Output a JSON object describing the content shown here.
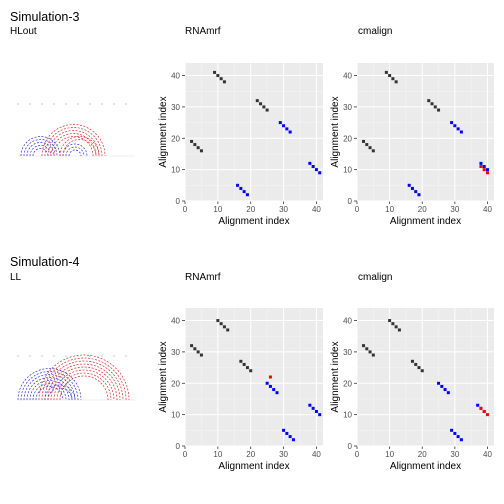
{
  "panels": [
    {
      "title": "Simulation-3",
      "structure": {
        "label": "HLout",
        "arcs_blue": [
          [
            2,
            15
          ],
          [
            3,
            14
          ],
          [
            4,
            13
          ],
          [
            5,
            12
          ],
          [
            6,
            11
          ],
          [
            16,
            24
          ],
          [
            17,
            23
          ],
          [
            18,
            22
          ]
        ],
        "arcs_red": [
          [
            9,
            30
          ],
          [
            10,
            29
          ],
          [
            11,
            28
          ],
          [
            12,
            27
          ],
          [
            13,
            26
          ],
          [
            15,
            28
          ],
          [
            16,
            27
          ]
        ]
      },
      "charts": [
        {
          "title": "RNAmrf",
          "xlabel": "Alignment index",
          "ylabel": "Alignment index",
          "xlim": [
            0,
            42
          ],
          "ylim": [
            0,
            44
          ],
          "xticks": [
            0,
            10,
            20,
            30,
            40
          ],
          "yticks": [
            0,
            10,
            20,
            30,
            40
          ],
          "series": [
            {
              "color": "#333333",
              "points": [
                [
                  2,
                  19
                ],
                [
                  3,
                  18
                ],
                [
                  4,
                  17
                ],
                [
                  5,
                  16
                ],
                [
                  9,
                  41
                ],
                [
                  10,
                  40
                ],
                [
                  11,
                  39
                ],
                [
                  12,
                  38
                ],
                [
                  22,
                  32
                ],
                [
                  23,
                  31
                ],
                [
                  24,
                  30
                ],
                [
                  25,
                  29
                ]
              ]
            },
            {
              "color": "#0000ff",
              "points": [
                [
                  16,
                  5
                ],
                [
                  17,
                  4
                ],
                [
                  18,
                  3
                ],
                [
                  19,
                  2
                ],
                [
                  29,
                  25
                ],
                [
                  30,
                  24
                ],
                [
                  31,
                  23
                ],
                [
                  32,
                  22
                ],
                [
                  38,
                  12
                ],
                [
                  39,
                  11
                ],
                [
                  40,
                  10
                ],
                [
                  41,
                  9
                ]
              ]
            },
            {
              "color": "#ff0000",
              "points": []
            }
          ]
        },
        {
          "title": "cmalign",
          "xlabel": "Alignment index",
          "ylabel": "Alignment index",
          "xlim": [
            0,
            42
          ],
          "ylim": [
            0,
            44
          ],
          "xticks": [
            0,
            10,
            20,
            30,
            40
          ],
          "yticks": [
            0,
            10,
            20,
            30,
            40
          ],
          "series": [
            {
              "color": "#333333",
              "points": [
                [
                  2,
                  19
                ],
                [
                  3,
                  18
                ],
                [
                  4,
                  17
                ],
                [
                  5,
                  16
                ],
                [
                  9,
                  41
                ],
                [
                  10,
                  40
                ],
                [
                  11,
                  39
                ],
                [
                  12,
                  38
                ],
                [
                  22,
                  32
                ],
                [
                  23,
                  31
                ],
                [
                  24,
                  30
                ],
                [
                  25,
                  29
                ]
              ]
            },
            {
              "color": "#0000ff",
              "points": [
                [
                  16,
                  5
                ],
                [
                  17,
                  4
                ],
                [
                  18,
                  3
                ],
                [
                  19,
                  2
                ],
                [
                  29,
                  25
                ],
                [
                  30,
                  24
                ],
                [
                  31,
                  23
                ],
                [
                  32,
                  22
                ],
                [
                  38,
                  12
                ],
                [
                  39,
                  11
                ],
                [
                  40,
                  10
                ]
              ]
            },
            {
              "color": "#ff0000",
              "points": [
                [
                  38,
                  11
                ],
                [
                  39,
                  10
                ],
                [
                  40,
                  9
                ]
              ]
            }
          ]
        }
      ]
    },
    {
      "title": "Simulation-4",
      "structure": {
        "label": "LL",
        "arcs_blue": [
          [
            1,
            22
          ],
          [
            2,
            21
          ],
          [
            3,
            20
          ],
          [
            4,
            19
          ],
          [
            5,
            18
          ],
          [
            6,
            17
          ],
          [
            7,
            16
          ],
          [
            10,
            20
          ],
          [
            11,
            19
          ]
        ],
        "arcs_red": [
          [
            8,
            38
          ],
          [
            9,
            37
          ],
          [
            10,
            36
          ],
          [
            11,
            35
          ],
          [
            12,
            34
          ],
          [
            13,
            33
          ],
          [
            14,
            32
          ],
          [
            15,
            31
          ]
        ]
      },
      "charts": [
        {
          "title": "RNAmrf",
          "xlabel": "Alignment index",
          "ylabel": "Alignment index",
          "xlim": [
            0,
            42
          ],
          "ylim": [
            0,
            44
          ],
          "xticks": [
            0,
            10,
            20,
            30,
            40
          ],
          "yticks": [
            0,
            10,
            20,
            30,
            40
          ],
          "series": [
            {
              "color": "#333333",
              "points": [
                [
                  2,
                  32
                ],
                [
                  3,
                  31
                ],
                [
                  4,
                  30
                ],
                [
                  5,
                  29
                ],
                [
                  10,
                  40
                ],
                [
                  11,
                  39
                ],
                [
                  12,
                  38
                ],
                [
                  13,
                  37
                ],
                [
                  17,
                  27
                ],
                [
                  18,
                  26
                ],
                [
                  19,
                  25
                ],
                [
                  20,
                  24
                ]
              ]
            },
            {
              "color": "#0000ff",
              "points": [
                [
                  25,
                  20
                ],
                [
                  26,
                  19
                ],
                [
                  27,
                  18
                ],
                [
                  28,
                  17
                ],
                [
                  30,
                  5
                ],
                [
                  31,
                  4
                ],
                [
                  32,
                  3
                ],
                [
                  33,
                  2
                ],
                [
                  38,
                  13
                ],
                [
                  39,
                  12
                ],
                [
                  40,
                  11
                ],
                [
                  41,
                  10
                ]
              ]
            },
            {
              "color": "#ff0000",
              "points": [
                [
                  26,
                  22
                ]
              ]
            }
          ]
        },
        {
          "title": "cmalign",
          "xlabel": "Alignment index",
          "ylabel": "Alignment index",
          "xlim": [
            0,
            42
          ],
          "ylim": [
            0,
            44
          ],
          "xticks": [
            0,
            10,
            20,
            30,
            40
          ],
          "yticks": [
            0,
            10,
            20,
            30,
            40
          ],
          "series": [
            {
              "color": "#333333",
              "points": [
                [
                  2,
                  32
                ],
                [
                  3,
                  31
                ],
                [
                  4,
                  30
                ],
                [
                  5,
                  29
                ],
                [
                  10,
                  40
                ],
                [
                  11,
                  39
                ],
                [
                  12,
                  38
                ],
                [
                  13,
                  37
                ],
                [
                  17,
                  27
                ],
                [
                  18,
                  26
                ],
                [
                  19,
                  25
                ],
                [
                  20,
                  24
                ]
              ]
            },
            {
              "color": "#0000ff",
              "points": [
                [
                  25,
                  20
                ],
                [
                  26,
                  19
                ],
                [
                  27,
                  18
                ],
                [
                  28,
                  17
                ],
                [
                  29,
                  5
                ],
                [
                  30,
                  4
                ],
                [
                  31,
                  3
                ],
                [
                  32,
                  2
                ],
                [
                  37,
                  13
                ],
                [
                  38,
                  12
                ],
                [
                  39,
                  11
                ]
              ]
            },
            {
              "color": "#ff0000",
              "points": [
                [
                  38,
                  12
                ],
                [
                  39,
                  11
                ],
                [
                  40,
                  10
                ]
              ]
            }
          ]
        }
      ]
    }
  ],
  "chart_data": [
    {
      "type": "scatter",
      "title": "RNAmrf",
      "xlabel": "Alignment index",
      "ylabel": "Alignment index",
      "xlim": [
        0,
        42
      ],
      "ylim": [
        0,
        44
      ]
    },
    {
      "type": "scatter",
      "title": "cmalign",
      "xlabel": "Alignment index",
      "ylabel": "Alignment index",
      "xlim": [
        0,
        42
      ],
      "ylim": [
        0,
        44
      ]
    },
    {
      "type": "scatter",
      "title": "RNAmrf",
      "xlabel": "Alignment index",
      "ylabel": "Alignment index",
      "xlim": [
        0,
        42
      ],
      "ylim": [
        0,
        44
      ]
    },
    {
      "type": "scatter",
      "title": "cmalign",
      "xlabel": "Alignment index",
      "ylabel": "Alignment index",
      "xlim": [
        0,
        42
      ],
      "ylim": [
        0,
        44
      ]
    }
  ]
}
